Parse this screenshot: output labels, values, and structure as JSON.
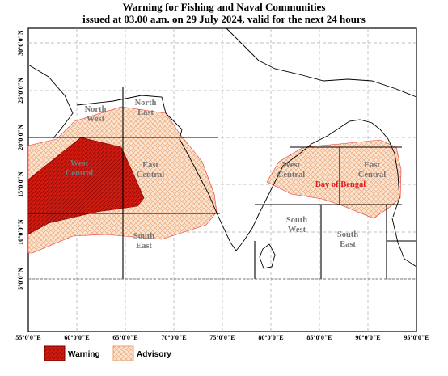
{
  "header": {
    "title": "Warning for Fishing and Naval Communities",
    "subtitle": "issued at 03.00 a.m.  on 29 July 2024, valid for the next 24 hours"
  },
  "map": {
    "longitude_labels": [
      "55°0'0\"E",
      "60°0'0\"E",
      "65°0'0\"E",
      "70°0'0\"E",
      "75°0'0\"E",
      "80°0'0\"E",
      "85°0'0\"E",
      "90°0'0\"E",
      "95°0'0\"E"
    ],
    "latitude_labels": [
      "30°0'0\"N",
      "25°0'0\"N",
      "20°0'0\"N",
      "15°0'0\"N",
      "10°0'0\"N",
      "5°0'0\"N"
    ],
    "areas": [
      {
        "lines": [
          "North",
          "West"
        ]
      },
      {
        "lines": [
          "North",
          "East"
        ]
      },
      {
        "lines": [
          "West",
          "Central"
        ]
      },
      {
        "lines": [
          "East",
          "Central"
        ]
      },
      {
        "lines": [
          "South",
          "East"
        ]
      },
      {
        "lines": [
          "West",
          "Central"
        ]
      },
      {
        "lines": [
          "East",
          "Central"
        ]
      },
      {
        "lines": [
          "South",
          "West"
        ]
      },
      {
        "lines": [
          "South",
          "East"
        ]
      }
    ],
    "sea_label": "Bay of Bengal"
  },
  "legend": {
    "items": [
      {
        "label": "Warning"
      },
      {
        "label": "Advisory"
      }
    ]
  }
}
